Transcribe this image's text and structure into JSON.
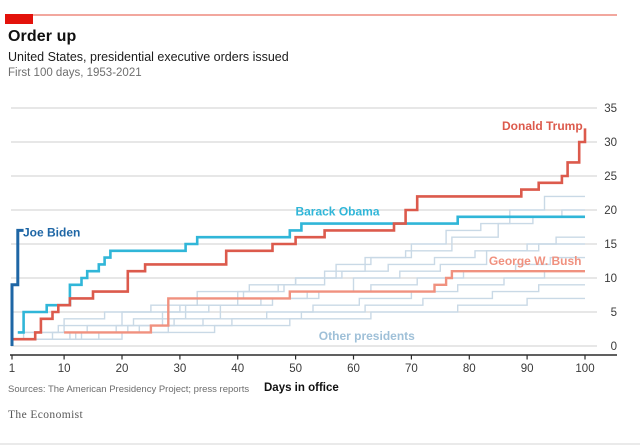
{
  "header": {
    "title": "Order up",
    "subtitle": "United States, presidential executive orders issued",
    "period": "First 100 days, 1953-2021"
  },
  "footer": {
    "sources": "Sources: The American Presidency Project; press reports",
    "xaxis_title": "Days in office",
    "brand": "The Economist"
  },
  "colors": {
    "brand_red": "#e3120b",
    "top_rule": "#f2a79e",
    "grid": "#cfcfcf",
    "axis": "#2b2b2b",
    "tick_text": "#3a3a3a"
  },
  "chart_data": {
    "type": "line",
    "step": true,
    "xlabel": "Days in office",
    "ylabel": "",
    "xlim": [
      1,
      100
    ],
    "ylim": [
      0,
      35
    ],
    "x_ticks": [
      1,
      10,
      20,
      30,
      40,
      50,
      60,
      70,
      80,
      90,
      100
    ],
    "y_ticks": [
      0,
      5,
      10,
      15,
      20,
      25,
      30,
      35
    ],
    "grid": "horizontal",
    "legend_position": "direct-labels",
    "series": [
      {
        "name": "Donald Trump",
        "color": "#dc5a4c",
        "width": 2.6,
        "points": [
          [
            1,
            1
          ],
          [
            5,
            2
          ],
          [
            6,
            4
          ],
          [
            8,
            5
          ],
          [
            9,
            6
          ],
          [
            11,
            7
          ],
          [
            15,
            8
          ],
          [
            21,
            11
          ],
          [
            24,
            12
          ],
          [
            38,
            14
          ],
          [
            46,
            15
          ],
          [
            50,
            16
          ],
          [
            55,
            17
          ],
          [
            67,
            18
          ],
          [
            69,
            20
          ],
          [
            71,
            22
          ],
          [
            89,
            23
          ],
          [
            92,
            24
          ],
          [
            96,
            25
          ],
          [
            97,
            27
          ],
          [
            99,
            30
          ],
          [
            100,
            32
          ]
        ]
      },
      {
        "name": "Barack Obama",
        "color": "#30b6d8",
        "width": 2.6,
        "points": [
          [
            2,
            2
          ],
          [
            3,
            5
          ],
          [
            7,
            6
          ],
          [
            11,
            9
          ],
          [
            13,
            10
          ],
          [
            14,
            11
          ],
          [
            16,
            12
          ],
          [
            17,
            13
          ],
          [
            18,
            14
          ],
          [
            31,
            15
          ],
          [
            33,
            16
          ],
          [
            49,
            17
          ],
          [
            51,
            18
          ],
          [
            78,
            19
          ],
          [
            100,
            19
          ]
        ]
      },
      {
        "name": "George W. Bush",
        "color": "#f0917f",
        "width": 2.4,
        "points": [
          [
            10,
            2
          ],
          [
            25,
            3
          ],
          [
            28,
            7
          ],
          [
            49,
            8
          ],
          [
            74,
            9
          ],
          [
            76,
            10
          ],
          [
            77,
            11
          ],
          [
            100,
            11
          ]
        ]
      },
      {
        "name": "Joe Biden",
        "color": "#1e66a5",
        "width": 3.0,
        "points": [
          [
            1,
            0
          ],
          [
            1,
            9
          ],
          [
            2,
            9
          ],
          [
            2,
            17
          ],
          [
            3,
            17
          ]
        ]
      }
    ],
    "other_presidents": {
      "name": "Other presidents",
      "color": "#c9d9e6",
      "width": 1.4,
      "lines": [
        [
          [
            1,
            1
          ],
          [
            3,
            2
          ],
          [
            9,
            3
          ],
          [
            20,
            5
          ],
          [
            30,
            6
          ],
          [
            33,
            7
          ],
          [
            41,
            8
          ],
          [
            48,
            9
          ],
          [
            50,
            10
          ],
          [
            57,
            12
          ],
          [
            63,
            13
          ],
          [
            70,
            15
          ],
          [
            76,
            17
          ],
          [
            82,
            18
          ],
          [
            87,
            20
          ],
          [
            93,
            22
          ],
          [
            100,
            22
          ]
        ],
        [
          [
            2,
            1
          ],
          [
            8,
            2
          ],
          [
            14,
            3
          ],
          [
            22,
            4
          ],
          [
            31,
            6
          ],
          [
            40,
            8
          ],
          [
            47,
            9
          ],
          [
            55,
            11
          ],
          [
            62,
            13
          ],
          [
            69,
            14
          ],
          [
            77,
            16
          ],
          [
            85,
            18
          ],
          [
            91,
            19
          ],
          [
            96,
            20
          ],
          [
            100,
            20
          ]
        ],
        [
          [
            4,
            1
          ],
          [
            12,
            2
          ],
          [
            19,
            3
          ],
          [
            27,
            5
          ],
          [
            35,
            6
          ],
          [
            44,
            7
          ],
          [
            52,
            8
          ],
          [
            60,
            10
          ],
          [
            68,
            11
          ],
          [
            75,
            12
          ],
          [
            83,
            14
          ],
          [
            90,
            15
          ],
          [
            95,
            16
          ],
          [
            100,
            16
          ]
        ],
        [
          [
            2,
            2
          ],
          [
            10,
            4
          ],
          [
            17,
            5
          ],
          [
            25,
            6
          ],
          [
            33,
            8
          ],
          [
            42,
            9
          ],
          [
            50,
            10
          ],
          [
            58,
            11
          ],
          [
            66,
            12
          ],
          [
            74,
            13
          ],
          [
            81,
            14
          ],
          [
            92,
            15
          ],
          [
            100,
            15
          ]
        ],
        [
          [
            5,
            1
          ],
          [
            13,
            2
          ],
          [
            21,
            3
          ],
          [
            29,
            4
          ],
          [
            37,
            6
          ],
          [
            46,
            7
          ],
          [
            54,
            8
          ],
          [
            63,
            9
          ],
          [
            71,
            10
          ],
          [
            79,
            11
          ],
          [
            88,
            12
          ],
          [
            94,
            13
          ],
          [
            100,
            13
          ]
        ],
        [
          [
            3,
            1
          ],
          [
            11,
            2
          ],
          [
            23,
            3
          ],
          [
            34,
            4
          ],
          [
            45,
            5
          ],
          [
            53,
            6
          ],
          [
            61,
            7
          ],
          [
            70,
            8
          ],
          [
            78,
            9
          ],
          [
            86,
            10
          ],
          [
            93,
            11
          ],
          [
            100,
            11
          ]
        ],
        [
          [
            6,
            1
          ],
          [
            16,
            2
          ],
          [
            28,
            3
          ],
          [
            39,
            4
          ],
          [
            51,
            5
          ],
          [
            62,
            6
          ],
          [
            72,
            7
          ],
          [
            84,
            8
          ],
          [
            92,
            9
          ],
          [
            100,
            9
          ]
        ],
        [
          [
            8,
            1
          ],
          [
            20,
            2
          ],
          [
            36,
            3
          ],
          [
            49,
            4
          ],
          [
            63,
            5
          ],
          [
            78,
            6
          ],
          [
            90,
            7
          ],
          [
            100,
            7
          ]
        ]
      ]
    },
    "labels": [
      {
        "text": "Joe Biden",
        "color": "#1e66a5",
        "day": 2.9,
        "value": 16.1,
        "anchor": "start",
        "key": "joe-biden"
      },
      {
        "text": "Barack Obama",
        "color": "#30b6d8",
        "day": 64.5,
        "value": 19.2,
        "anchor": "end",
        "key": "barack-obama"
      },
      {
        "text": "Donald Trump",
        "color": "#dc5a4c",
        "day": 99.6,
        "value": 31.8,
        "anchor": "end",
        "key": "donald-trump"
      },
      {
        "text": "George W. Bush",
        "color": "#f0917f",
        "day": 99.4,
        "value": 11.9,
        "anchor": "end",
        "key": "george-w-bush"
      },
      {
        "text": "Other presidents",
        "color": "#9fc0d8",
        "day": 54.0,
        "value": 0.9,
        "anchor": "start",
        "key": "other-presidents"
      }
    ]
  }
}
